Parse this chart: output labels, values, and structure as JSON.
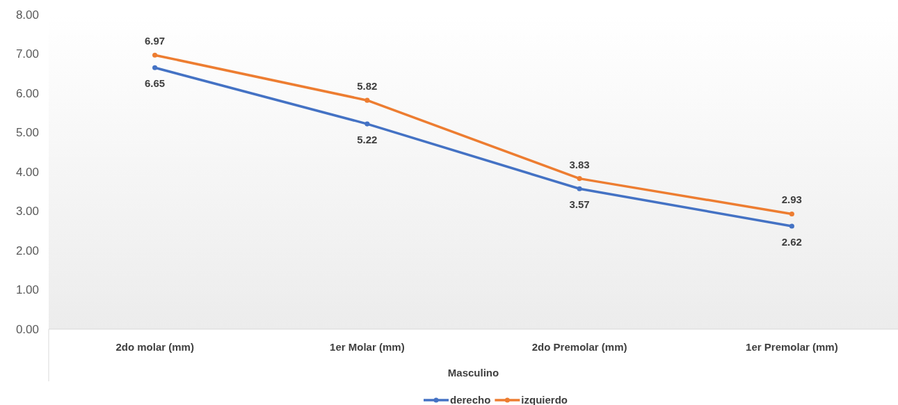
{
  "chart_data": {
    "type": "line",
    "xlabel": "Masculino",
    "categories": [
      "2do molar (mm)",
      "1er Molar (mm)",
      "2do Premolar (mm)",
      "1er Premolar (mm)"
    ],
    "series": [
      {
        "name": "derecho",
        "color": "#4472c4",
        "values": [
          6.65,
          5.22,
          3.57,
          2.62
        ]
      },
      {
        "name": "izquierdo",
        "color": "#ed7d31",
        "values": [
          6.97,
          5.82,
          3.83,
          2.93
        ]
      }
    ],
    "ylim": [
      0,
      8
    ],
    "yticks": [
      {
        "value": 0,
        "label": "0.00"
      },
      {
        "value": 1,
        "label": "1.00"
      },
      {
        "value": 2,
        "label": "2.00"
      },
      {
        "value": 3,
        "label": "3.00"
      },
      {
        "value": 4,
        "label": "4.00"
      },
      {
        "value": 5,
        "label": "5.00"
      },
      {
        "value": 6,
        "label": "6.00"
      },
      {
        "value": 7,
        "label": "7.00"
      },
      {
        "value": 8,
        "label": "8.00"
      }
    ],
    "grid": false,
    "legend": "bottom",
    "marker": "circle",
    "line_style": "solid",
    "data_labels": true
  }
}
